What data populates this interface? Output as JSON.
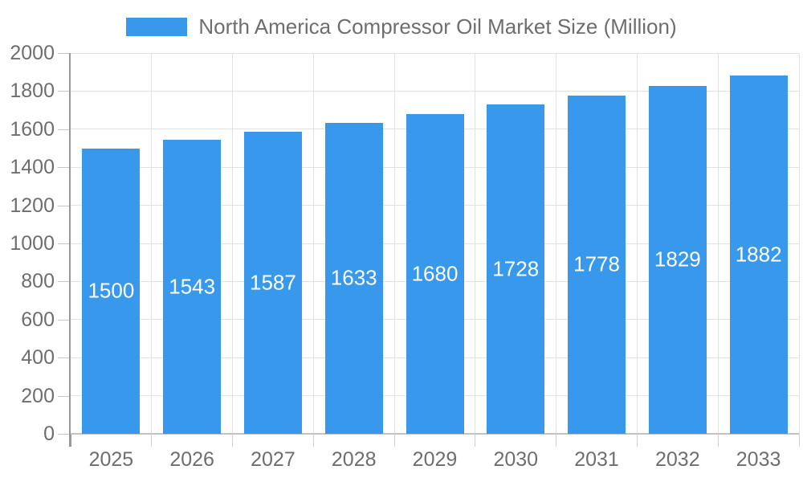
{
  "legend": {
    "label": "North America Compressor Oil Market Size (Million)"
  },
  "chart_data": {
    "type": "bar",
    "title": "North America Compressor Oil Market Size (Million)",
    "series_name": "North America Compressor Oil Market Size (Million)",
    "categories": [
      "2025",
      "2026",
      "2027",
      "2028",
      "2029",
      "2030",
      "2031",
      "2032",
      "2033"
    ],
    "values": [
      1500,
      1543,
      1587,
      1633,
      1680,
      1728,
      1778,
      1829,
      1882
    ],
    "xlabel": "",
    "ylabel": "",
    "ylim": [
      0,
      2000
    ],
    "ytick_step": 200,
    "yticks": [
      0,
      200,
      400,
      600,
      800,
      1000,
      1200,
      1400,
      1600,
      1800,
      2000
    ],
    "grid": true,
    "legend_position": "top",
    "bar_labels_inside": true,
    "colors": {
      "bar": "#3899EC",
      "bar_label": "#FFFFFF",
      "axis_text": "#6E6E6E",
      "gridline": "#E2E2E2",
      "axis_line": "#999999",
      "baseline": "#C2C2C2"
    }
  }
}
